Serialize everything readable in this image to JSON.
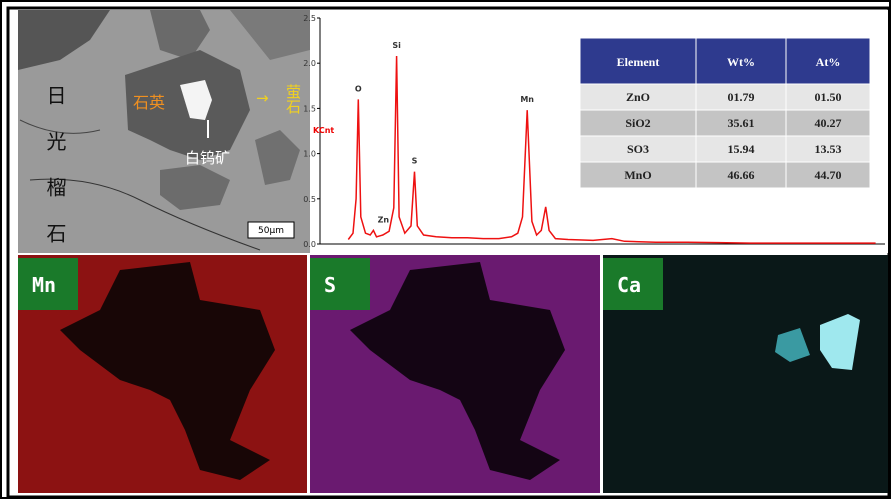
{
  "sem": {
    "labels": [
      "日光榴石",
      "石英",
      "萤石",
      "白钨矿"
    ],
    "scale": "50μm"
  },
  "chart_data": {
    "type": "line",
    "ylabel": "KCnt",
    "x": [
      0.2,
      0.35,
      0.45,
      0.52,
      0.6,
      0.75,
      0.9,
      1.0,
      1.1,
      1.3,
      1.5,
      1.65,
      1.74,
      1.82,
      2.0,
      2.2,
      2.31,
      2.4,
      2.6,
      3.0,
      3.5,
      4.0,
      4.5,
      5.0,
      5.4,
      5.6,
      5.75,
      5.9,
      6.05,
      6.2,
      6.35,
      6.49,
      6.6,
      6.8,
      7.2,
      8.0,
      8.6,
      9.0,
      10,
      11,
      12,
      13,
      14,
      15,
      16,
      17
    ],
    "values": [
      0.05,
      0.12,
      0.5,
      1.6,
      0.3,
      0.12,
      0.1,
      0.15,
      0.08,
      0.1,
      0.14,
      0.4,
      2.08,
      0.3,
      0.12,
      0.2,
      0.8,
      0.2,
      0.1,
      0.08,
      0.07,
      0.07,
      0.06,
      0.06,
      0.08,
      0.12,
      0.3,
      1.48,
      0.25,
      0.1,
      0.15,
      0.41,
      0.15,
      0.06,
      0.05,
      0.04,
      0.06,
      0.03,
      0.02,
      0.02,
      0.015,
      0.01,
      0.01,
      0.01,
      0.01,
      0.01
    ],
    "color": "#ee1111",
    "xlim": [
      -0.7,
      17.3
    ],
    "ylim": [
      0,
      2.5
    ],
    "yticks": [
      {
        "value": 0,
        "label": "0.0"
      },
      0.5,
      {
        "value": 1,
        "label": "1.0"
      },
      1.5,
      {
        "value": 2,
        "label": "2.0"
      },
      2.5
    ],
    "annotations": [
      {
        "text": "O",
        "x": 0.52,
        "y": 1.6
      },
      {
        "text": "Zn",
        "x": 1.0,
        "y": 0.15
      },
      {
        "text": "Si",
        "x": 1.74,
        "y": 2.08
      },
      {
        "text": "S",
        "x": 2.31,
        "y": 0.8
      },
      {
        "text": "Mn",
        "x": 5.9,
        "y": 1.48
      }
    ]
  },
  "table": {
    "header": [
      "Element",
      "Wt%",
      "At%"
    ],
    "rows": [
      [
        "ZnO",
        "01.79",
        "01.50"
      ],
      [
        "SiO2",
        "35.61",
        "40.27"
      ],
      [
        "SO3",
        "15.94",
        "13.53"
      ],
      [
        "MnO",
        "46.66",
        "44.70"
      ]
    ]
  },
  "maps": [
    {
      "label": "Mn"
    },
    {
      "label": "S"
    },
    {
      "label": "Ca"
    }
  ]
}
